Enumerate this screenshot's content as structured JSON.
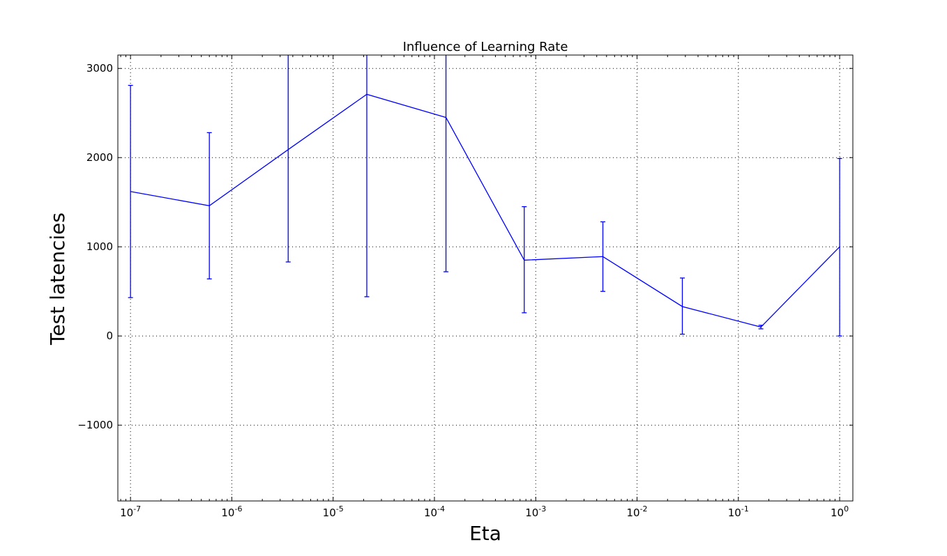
{
  "chart_data": {
    "type": "line",
    "title": "Influence of Learning Rate",
    "xlabel": "Eta",
    "ylabel": "Test latencies",
    "x_scale": "log",
    "xlim": [
      7.5e-08,
      1.35
    ],
    "ylim": [
      -1850,
      3150
    ],
    "grid": true,
    "line_color": "#0000ff",
    "x_ticks": [
      1e-07,
      1e-06,
      1e-05,
      0.0001,
      0.001,
      0.01,
      0.1,
      1
    ],
    "x_tick_labels": [
      {
        "base": "10",
        "exp": "-7"
      },
      {
        "base": "10",
        "exp": "-6"
      },
      {
        "base": "10",
        "exp": "-5"
      },
      {
        "base": "10",
        "exp": "-4"
      },
      {
        "base": "10",
        "exp": "-3"
      },
      {
        "base": "10",
        "exp": "-2"
      },
      {
        "base": "10",
        "exp": "-1"
      },
      {
        "base": "10",
        "exp": "0"
      }
    ],
    "y_ticks": [
      3000,
      2000,
      1000,
      0,
      -1000
    ],
    "y_tick_labels": [
      "3000",
      "2000",
      "1000",
      "0",
      "−1000"
    ],
    "series": [
      {
        "x": [
          1e-07,
          6e-07,
          3.6e-06,
          2.15e-05,
          0.00013,
          0.00077,
          0.0046,
          0.028,
          0.167,
          1
        ],
        "y": [
          1620,
          1460,
          2090,
          2710,
          2450,
          850,
          890,
          330,
          100,
          1000
        ],
        "yerr_low": [
          430,
          640,
          830,
          440,
          720,
          260,
          500,
          20,
          80,
          0
        ],
        "yerr_high": [
          2810,
          2280,
          3350,
          3250,
          3300,
          1450,
          1280,
          650,
          120,
          1990
        ]
      }
    ]
  }
}
